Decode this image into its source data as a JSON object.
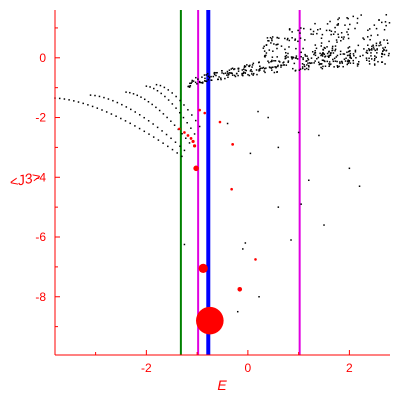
{
  "chart_data": {
    "type": "scatter",
    "title": "",
    "xlabel": "E",
    "ylabel": "<J3>",
    "xlim": [
      -3.8,
      2.8
    ],
    "ylim": [
      -9.95,
      1.6
    ],
    "xticks": [
      -2,
      0,
      2
    ],
    "yticks": [
      -8,
      -6,
      -4,
      -2,
      0
    ],
    "grid": false,
    "legend": "none",
    "colors": {
      "axis": "#ff0000",
      "ticks": "#ff0000",
      "points": "#000000",
      "highlight_points": "#ff0000",
      "vline_green": "#008000",
      "vline_magenta": "#e000e0",
      "vline_blue": "#0000ff"
    },
    "vertical_lines": [
      {
        "x": -1.32,
        "color": "#008000"
      },
      {
        "x": -0.98,
        "color": "#e000e0"
      },
      {
        "x": -0.78,
        "color": "#0000ff"
      },
      {
        "x": 1.02,
        "color": "#e000e0"
      }
    ],
    "highlight_points": [
      {
        "x": -0.75,
        "y": -8.8,
        "size": 3.0
      },
      {
        "x": -0.88,
        "y": -7.05,
        "size": 1.0
      },
      {
        "x": -1.02,
        "y": -3.7,
        "size": 0.6
      },
      {
        "x": -0.16,
        "y": -7.75,
        "size": 0.5
      },
      {
        "x": -1.05,
        "y": -2.95,
        "size": 0.35
      },
      {
        "x": -1.08,
        "y": -2.8,
        "size": 0.35
      },
      {
        "x": -1.12,
        "y": -2.7,
        "size": 0.3
      },
      {
        "x": -1.18,
        "y": -2.6,
        "size": 0.3
      },
      {
        "x": -1.25,
        "y": -2.5,
        "size": 0.25
      },
      {
        "x": -1.35,
        "y": -2.38,
        "size": 0.25
      },
      {
        "x": -0.3,
        "y": -2.9,
        "size": 0.3
      },
      {
        "x": -0.55,
        "y": -2.15,
        "size": 0.25
      },
      {
        "x": -0.32,
        "y": -4.4,
        "size": 0.25
      },
      {
        "x": -0.85,
        "y": -1.85,
        "size": 0.2
      },
      {
        "x": -0.95,
        "y": -1.75,
        "size": 0.2
      },
      {
        "x": 0.15,
        "y": -6.75,
        "size": 0.15
      }
    ],
    "isolated_points": [
      [
        -1.25,
        -6.25
      ],
      [
        -0.1,
        -6.4
      ],
      [
        0.6,
        -5.0
      ],
      [
        1.05,
        -4.9
      ],
      [
        0.85,
        -6.1
      ],
      [
        0.22,
        -8.0
      ],
      [
        0.05,
        -3.2
      ],
      [
        0.6,
        -3.0
      ],
      [
        1.2,
        -4.1
      ],
      [
        2.2,
        -4.3
      ],
      [
        1.4,
        -2.6
      ],
      [
        2.0,
        -3.7
      ],
      [
        0.2,
        -1.8
      ],
      [
        1.5,
        -5.6
      ],
      [
        -0.6,
        -8.9
      ],
      [
        -0.2,
        -8.5
      ],
      [
        -0.05,
        -6.2
      ],
      [
        0.4,
        -2.0
      ],
      [
        -0.4,
        -2.2
      ],
      [
        1.0,
        -2.5
      ]
    ],
    "point_families": [
      {
        "x_start": -3.8,
        "x_end": -1.3,
        "y_start": -1.35,
        "y_end": -3.3,
        "count": 28
      },
      {
        "x_start": -3.1,
        "x_end": -1.25,
        "y_start": -1.25,
        "y_end": -3.1,
        "count": 22
      },
      {
        "x_start": -2.4,
        "x_end": -1.15,
        "y_start": -1.15,
        "y_end": -2.85,
        "count": 18
      },
      {
        "x_start": -2.0,
        "x_end": -1.05,
        "y_start": -0.95,
        "y_end": -2.55,
        "count": 14
      },
      {
        "x_start": -1.8,
        "x_end": -0.95,
        "y_start": -0.9,
        "y_end": -2.3,
        "count": 12
      }
    ],
    "upper_band": {
      "x_start": -1.2,
      "x_end": 2.8,
      "y_center_start": -1.0,
      "y_center_end": 0.15,
      "count": 340
    },
    "upper_cloud": {
      "x_start": 0.3,
      "x_end": 2.8,
      "y_low": 0.0,
      "y_high": 1.5,
      "count": 170
    }
  }
}
